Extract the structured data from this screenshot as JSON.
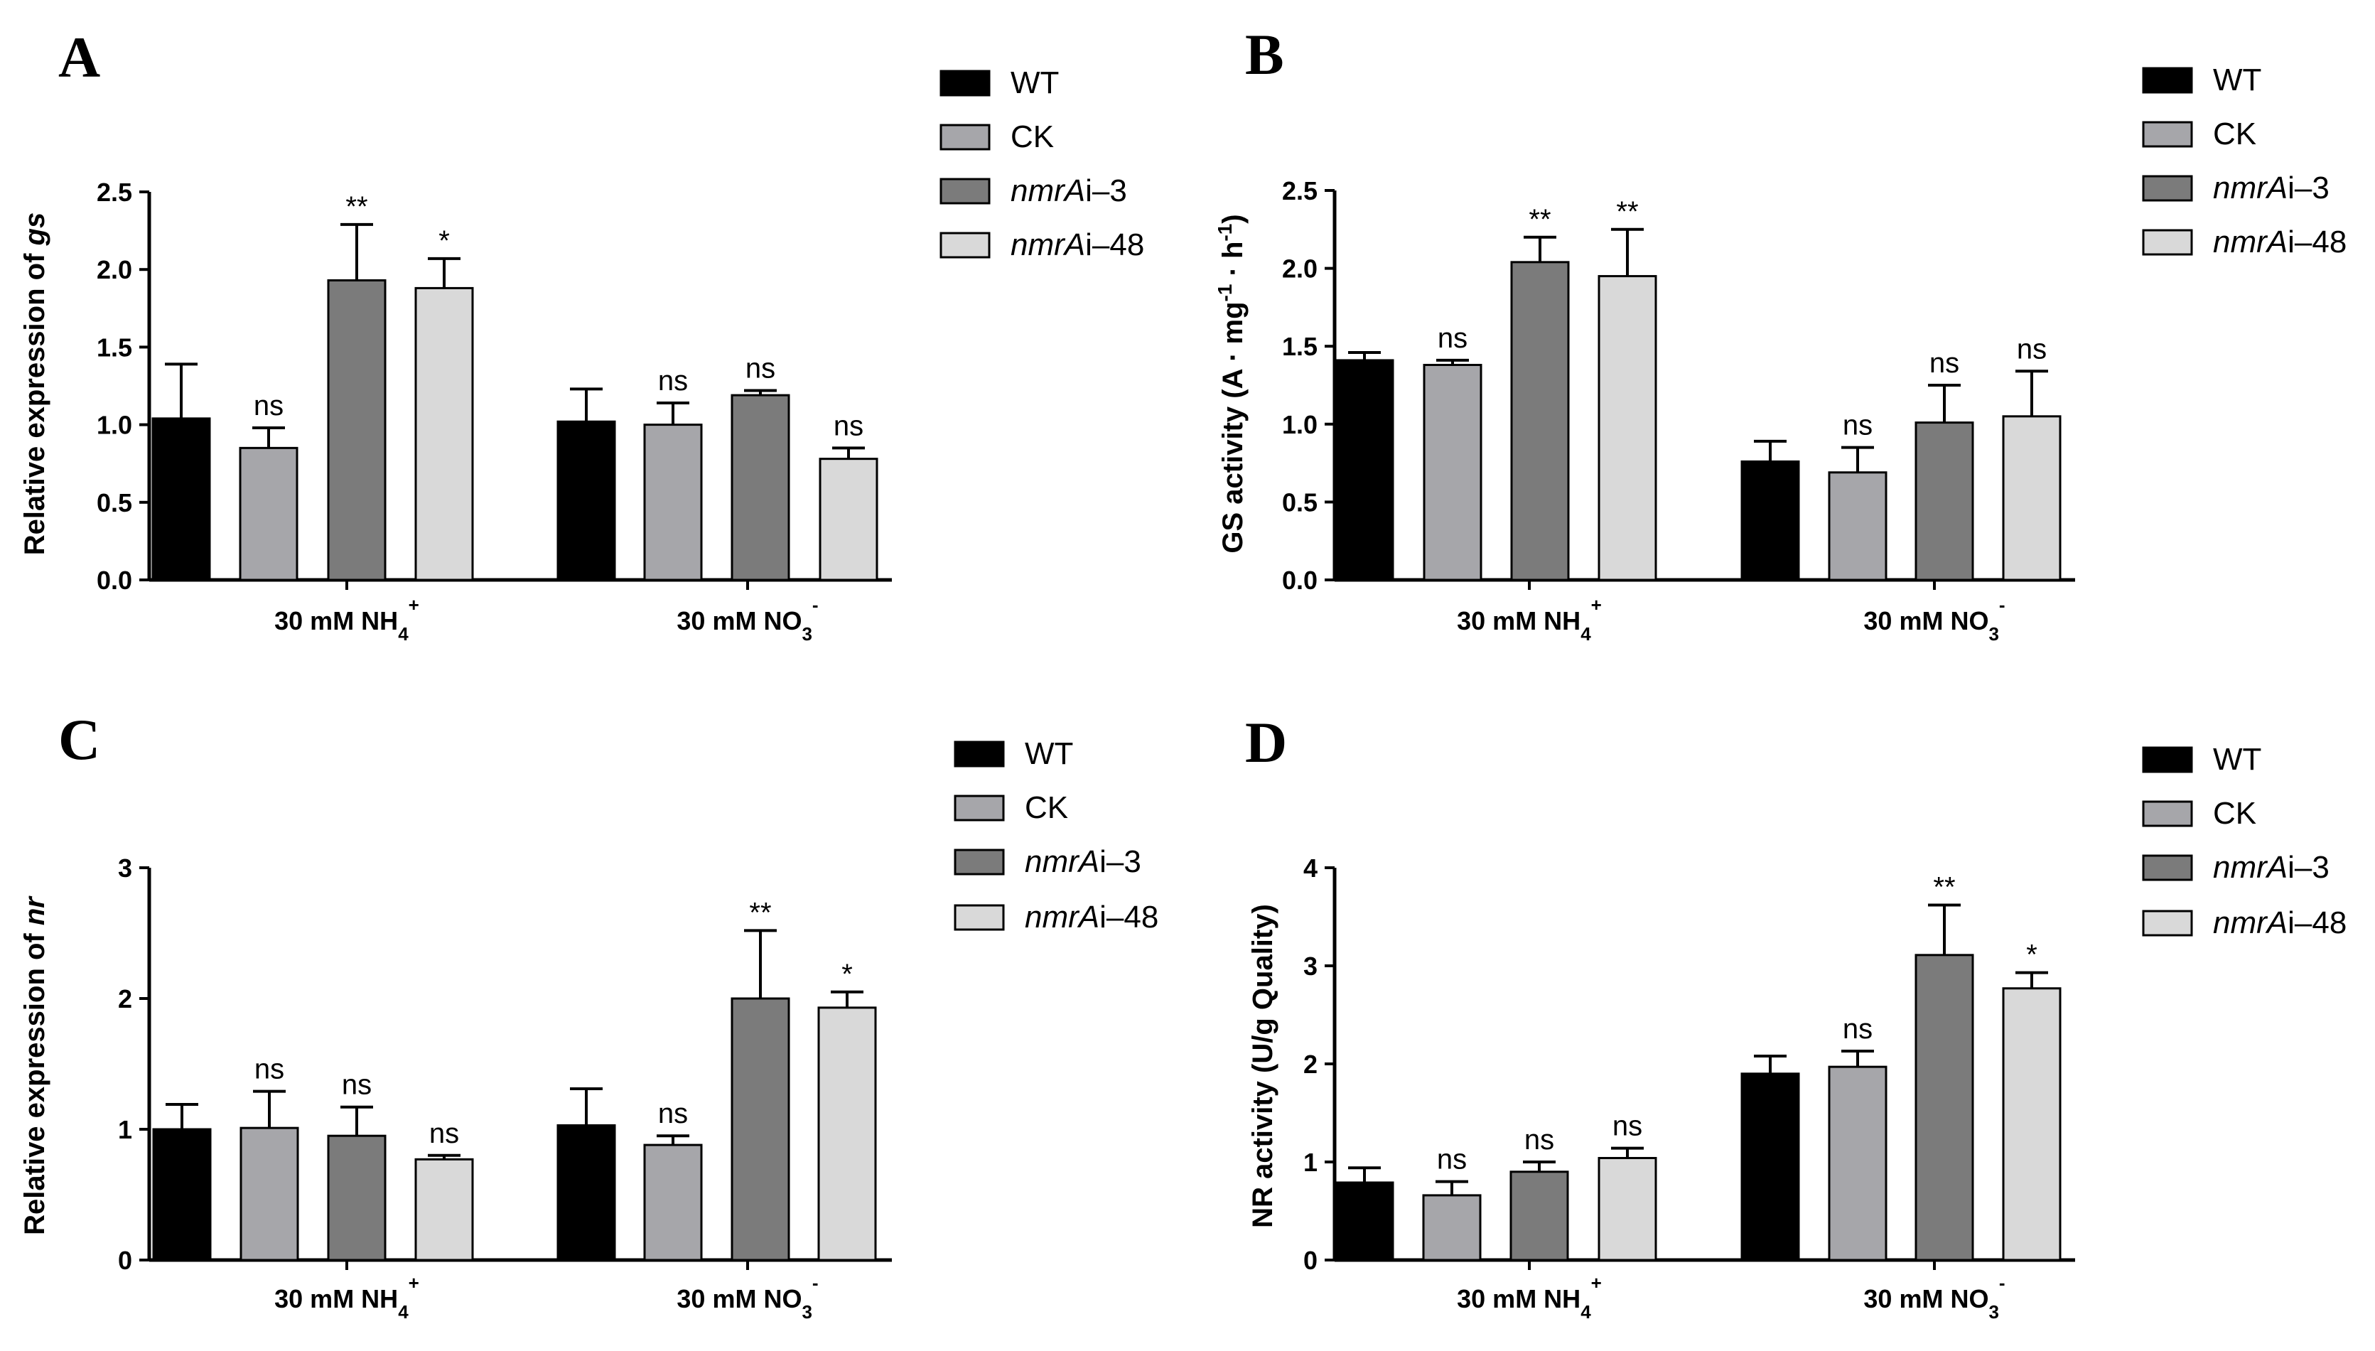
{
  "colors": {
    "WT": "#000000",
    "CK": "#a6a6aa",
    "nmrAi-3": "#7b7b7b",
    "nmrAi-48": "#d9d9d9",
    "axis": "#000000",
    "error_bar": "#000000"
  },
  "chart_data": [
    {
      "panel": "A",
      "type": "bar",
      "ylabel": "Relative expression of gs",
      "ylabel_main": "Relative expression of ",
      "ylabel_italic": "gs",
      "ylim": [
        0,
        2.5
      ],
      "yticks": [
        0,
        0.5,
        1,
        1.5,
        2,
        2.5
      ],
      "ytick_labels": [
        "0.0",
        "0.5",
        "1.0",
        "1.5",
        "2.0",
        "2.5"
      ],
      "categories": [
        "30 mM NH4+",
        "30 mM NO3-"
      ],
      "category_labels": [
        {
          "base": "30 mM NH",
          "sub": "4",
          "sup": "+"
        },
        {
          "base": "30 mM NO",
          "sub": "3",
          "sup": "-"
        }
      ],
      "series": [
        {
          "name": "WT",
          "values": [
            1.04,
            1.02
          ],
          "errors": [
            0.35,
            0.21
          ],
          "sig": [
            "",
            ""
          ]
        },
        {
          "name": "CK",
          "values": [
            0.85,
            1.0
          ],
          "errors": [
            0.13,
            0.14
          ],
          "sig": [
            "ns",
            "ns"
          ]
        },
        {
          "name": "nmrAi-3",
          "values": [
            1.93,
            1.19
          ],
          "errors": [
            0.36,
            0.03
          ],
          "sig": [
            "**",
            "ns"
          ]
        },
        {
          "name": "nmrAi-48",
          "values": [
            1.88,
            0.78
          ],
          "errors": [
            0.19,
            0.07
          ],
          "sig": [
            "*",
            "ns"
          ]
        }
      ],
      "legend": [
        {
          "label": "WT",
          "italic": "",
          "rest": "WT"
        },
        {
          "label": "CK",
          "italic": "",
          "rest": "CK"
        },
        {
          "label": "nmrAi–3",
          "italic": "nmrA",
          "rest": "i–3"
        },
        {
          "label": "nmrAi–48",
          "italic": "nmrA",
          "rest": "i–48"
        }
      ]
    },
    {
      "panel": "B",
      "type": "bar",
      "ylabel": "GS activity (A · mg-1 · h-1)",
      "ylabel_parts": [
        "GS activity (A · mg",
        "-1",
        " · h",
        "-1",
        ")"
      ],
      "ylim": [
        0,
        2.5
      ],
      "yticks": [
        0,
        0.5,
        1,
        1.5,
        2,
        2.5
      ],
      "ytick_labels": [
        "0.0",
        "0.5",
        "1.0",
        "1.5",
        "2.0",
        "2.5"
      ],
      "categories": [
        "30 mM NH4+",
        "30 mM NO3-"
      ],
      "category_labels": [
        {
          "base": "30 mM NH",
          "sub": "4",
          "sup": "+"
        },
        {
          "base": "30 mM NO",
          "sub": "3",
          "sup": "-"
        }
      ],
      "series": [
        {
          "name": "WT",
          "values": [
            1.41,
            0.76
          ],
          "errors": [
            0.05,
            0.13
          ],
          "sig": [
            "",
            ""
          ]
        },
        {
          "name": "CK",
          "values": [
            1.38,
            0.69
          ],
          "errors": [
            0.03,
            0.16
          ],
          "sig": [
            "ns",
            "ns"
          ]
        },
        {
          "name": "nmrAi-3",
          "values": [
            2.04,
            1.01
          ],
          "errors": [
            0.16,
            0.24
          ],
          "sig": [
            "**",
            "ns"
          ]
        },
        {
          "name": "nmrAi-48",
          "values": [
            1.95,
            1.05
          ],
          "errors": [
            0.3,
            0.29
          ],
          "sig": [
            "**",
            "ns"
          ]
        }
      ],
      "legend": [
        {
          "label": "WT",
          "italic": "",
          "rest": "WT"
        },
        {
          "label": "CK",
          "italic": "",
          "rest": "CK"
        },
        {
          "label": "nmrAi–3",
          "italic": "nmrA",
          "rest": "i–3"
        },
        {
          "label": "nmrAi–48",
          "italic": "nmrA",
          "rest": "i–48"
        }
      ]
    },
    {
      "panel": "C",
      "type": "bar",
      "ylabel": "Relative expression of nr",
      "ylabel_main": "Relative expression of ",
      "ylabel_italic": "nr",
      "ylim": [
        0,
        3
      ],
      "yticks": [
        0,
        1,
        2,
        3
      ],
      "ytick_labels": [
        "0",
        "1",
        "2",
        "3"
      ],
      "categories": [
        "30 mM NH4+",
        "30 mM NO3-"
      ],
      "category_labels": [
        {
          "base": "30 mM NH",
          "sub": "4",
          "sup": "+"
        },
        {
          "base": "30 mM NO",
          "sub": "3",
          "sup": "-"
        }
      ],
      "series": [
        {
          "name": "WT",
          "values": [
            1.0,
            1.03
          ],
          "errors": [
            0.19,
            0.28
          ],
          "sig": [
            "",
            ""
          ]
        },
        {
          "name": "CK",
          "values": [
            1.01,
            0.88
          ],
          "errors": [
            0.28,
            0.07
          ],
          "sig": [
            "ns",
            "ns"
          ]
        },
        {
          "name": "nmrAi-3",
          "values": [
            0.95,
            2.0
          ],
          "errors": [
            0.22,
            0.52
          ],
          "sig": [
            "ns",
            "**"
          ]
        },
        {
          "name": "nmrAi-48",
          "values": [
            0.77,
            1.93
          ],
          "errors": [
            0.03,
            0.12
          ],
          "sig": [
            "ns",
            "*"
          ]
        }
      ],
      "legend": [
        {
          "label": "WT",
          "italic": "",
          "rest": "WT"
        },
        {
          "label": "CK",
          "italic": "",
          "rest": "CK"
        },
        {
          "label": "nmrAi–3",
          "italic": "nmrA",
          "rest": "i–3"
        },
        {
          "label": "nmrAi–48",
          "italic": "nmrA",
          "rest": "i–48"
        }
      ]
    },
    {
      "panel": "D",
      "type": "bar",
      "ylabel": "NR activity (U/g Quality)",
      "ylim": [
        0,
        4
      ],
      "yticks": [
        0,
        1,
        2,
        3,
        4
      ],
      "ytick_labels": [
        "0",
        "1",
        "2",
        "3",
        "4"
      ],
      "categories": [
        "30 mM NH4+",
        "30 mM NO3-"
      ],
      "category_labels": [
        {
          "base": "30 mM NH",
          "sub": "4",
          "sup": "+"
        },
        {
          "base": "30 mM NO",
          "sub": "3",
          "sup": "-"
        }
      ],
      "series": [
        {
          "name": "WT",
          "values": [
            0.79,
            1.9
          ],
          "errors": [
            0.15,
            0.18
          ],
          "sig": [
            "",
            ""
          ]
        },
        {
          "name": "CK",
          "values": [
            0.66,
            1.97
          ],
          "errors": [
            0.14,
            0.16
          ],
          "sig": [
            "ns",
            "ns"
          ]
        },
        {
          "name": "nmrAi-3",
          "values": [
            0.9,
            3.11
          ],
          "errors": [
            0.1,
            0.51
          ],
          "sig": [
            "ns",
            "**"
          ]
        },
        {
          "name": "nmrAi-48",
          "values": [
            1.04,
            2.77
          ],
          "errors": [
            0.1,
            0.16
          ],
          "sig": [
            "ns",
            "*"
          ]
        }
      ],
      "legend": [
        {
          "label": "WT",
          "italic": "",
          "rest": "WT"
        },
        {
          "label": "CK",
          "italic": "",
          "rest": "CK"
        },
        {
          "label": "nmrAi–3",
          "italic": "nmrA",
          "rest": "i–3"
        },
        {
          "label": "nmrAi–48",
          "italic": "nmrA",
          "rest": "i–48"
        }
      ]
    }
  ]
}
